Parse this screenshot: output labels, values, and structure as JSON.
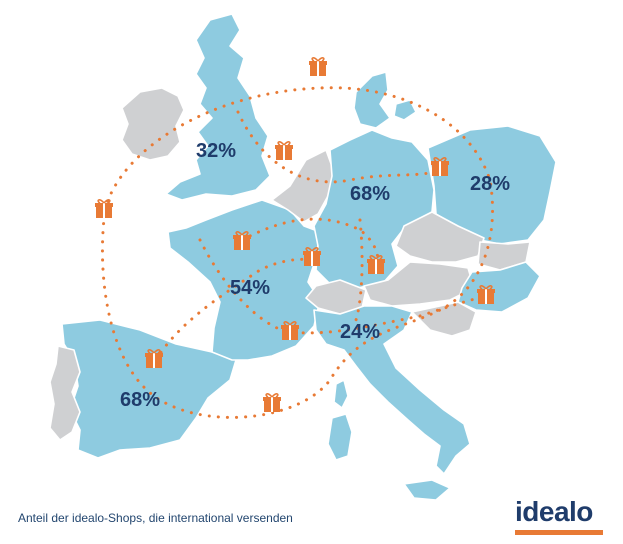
{
  "caption": "Anteil der idealo-Shops, die international versenden",
  "logo": "idealo",
  "labels": {
    "uk": "32%",
    "germany": "68%",
    "poland": "28%",
    "france": "54%",
    "italy": "24%",
    "spain": "68%"
  },
  "colors": {
    "highlight": "#8ecbe0",
    "other_land": "#cfd0d2",
    "accent": "#e87a35",
    "text": "#1f3c6b"
  },
  "icons": [
    "gift-icon"
  ]
}
